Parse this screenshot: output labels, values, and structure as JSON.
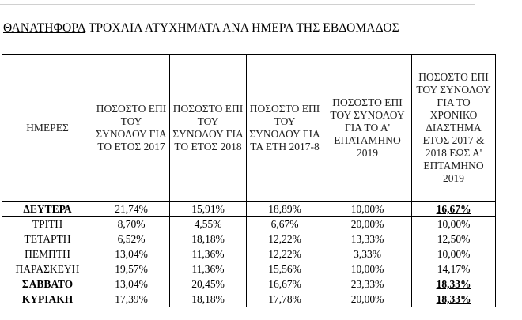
{
  "document": {
    "title_underlined": "ΘΑΝΑΤΗΦΟΡΑ",
    "title_rest": " ΤΡΟΧΑΙΑ ΑΤΥΧΗΜΑΤΑ ΑΝΑ ΗΜΕΡΑ ΤΗΣ ΕΒΔΟΜΑΔΟΣ"
  },
  "table": {
    "headers": [
      "ΗΜΕΡΕΣ",
      "ΠΟΣΟΣΤΟ ΕΠΙ ΤΟΥ ΣΥΝΟΛΟΥ ΓΙΑ ΤΟ ΕΤΟΣ 2017",
      "ΠΟΣΟΣΤΟ ΕΠΙ ΤΟΥ ΣΥΝΟΛΟΥ ΓΙΑ ΤΟ ΕΤΟΣ 2018",
      "ΠΟΣΟΣΤΟ ΕΠΙ ΤΟΥ ΣΥΝΟΛΟΥ ΓΙΑ ΤΑ ΕΤΗ 2017-8",
      "ΠΟΣΟΣΤΟ ΕΠΙ ΤΟΥ ΣΥΝΟΛΟΥ ΓΙΑ ΤΟ Α' ΕΠΑΤΑΜΗΝΟ 2019",
      "ΠΟΣΟΣΤΟ ΕΠΙ ΤΟΥ ΣΥΝΟΛΟΥ ΓΙΑ ΤΟ ΧΡΟΝΙΚΟ ΔΙΑΣΤΗΜΑ ΕΤΟΣ 2017 & 2018 ΕΩΣ Α' ΕΠΤΑΜΗΝΟ 2019"
    ],
    "rows": [
      {
        "day": "ΔΕΥΤΕΡΑ",
        "v2017": "21,74%",
        "v2018": "15,91%",
        "v2017_8": "18,89%",
        "v2019": "10,00%",
        "vtotal": "16,67%",
        "bold": true,
        "highlight": true
      },
      {
        "day": "ΤΡΙΤΗ",
        "v2017": "8,70%",
        "v2018": "4,55%",
        "v2017_8": "6,67%",
        "v2019": "20,00%",
        "vtotal": "10,00%",
        "bold": false,
        "highlight": false
      },
      {
        "day": "ΤΕΤΑΡΤΗ",
        "v2017": "6,52%",
        "v2018": "18,18%",
        "v2017_8": "12,22%",
        "v2019": "13,33%",
        "vtotal": "12,50%",
        "bold": false,
        "highlight": false
      },
      {
        "day": "ΠΕΜΠΤΗ",
        "v2017": "13,04%",
        "v2018": "11,36%",
        "v2017_8": "12,22%",
        "v2019": "3,33%",
        "vtotal": "10,00%",
        "bold": false,
        "highlight": false
      },
      {
        "day": "ΠΑΡΑΣΚΕΥΗ",
        "v2017": "19,57%",
        "v2018": "11,36%",
        "v2017_8": "15,56%",
        "v2019": "10,00%",
        "vtotal": "14,17%",
        "bold": false,
        "highlight": false
      },
      {
        "day": "ΣΑΒΒΑΤΟ",
        "v2017": "13,04%",
        "v2018": "20,45%",
        "v2017_8": "16,67%",
        "v2019": "23,33%",
        "vtotal": "18,33%",
        "bold": true,
        "highlight": true
      },
      {
        "day": "ΚΥΡΙΑΚΗ",
        "v2017": "17,39%",
        "v2018": "18,18%",
        "v2017_8": "17,78%",
        "v2019": "20,00%",
        "vtotal": "18,33%",
        "bold": true,
        "highlight": true
      }
    ]
  }
}
